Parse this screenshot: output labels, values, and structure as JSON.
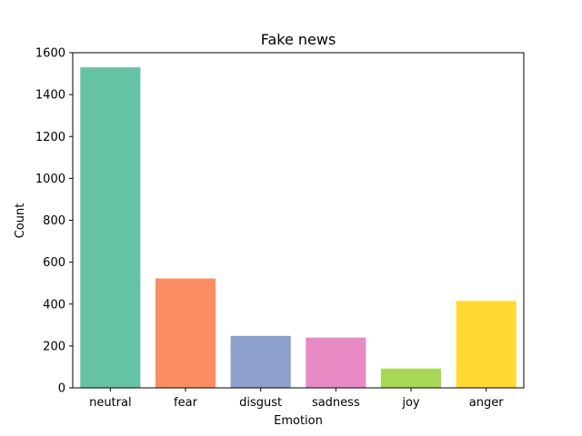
{
  "chart_data": {
    "type": "bar",
    "title": "Fake news",
    "xlabel": "Emotion",
    "ylabel": "Count",
    "categories": [
      "neutral",
      "fear",
      "disgust",
      "sadness",
      "joy",
      "anger"
    ],
    "values": [
      1530,
      522,
      248,
      240,
      92,
      415
    ],
    "colors": [
      "#66c2a5",
      "#fc8d62",
      "#8da0cb",
      "#e78ac3",
      "#a6d854",
      "#ffd92f"
    ],
    "ylim": [
      0,
      1600
    ],
    "yticks": [
      0,
      200,
      400,
      600,
      800,
      1000,
      1200,
      1400,
      1600
    ],
    "grid": false,
    "legend": "none"
  }
}
